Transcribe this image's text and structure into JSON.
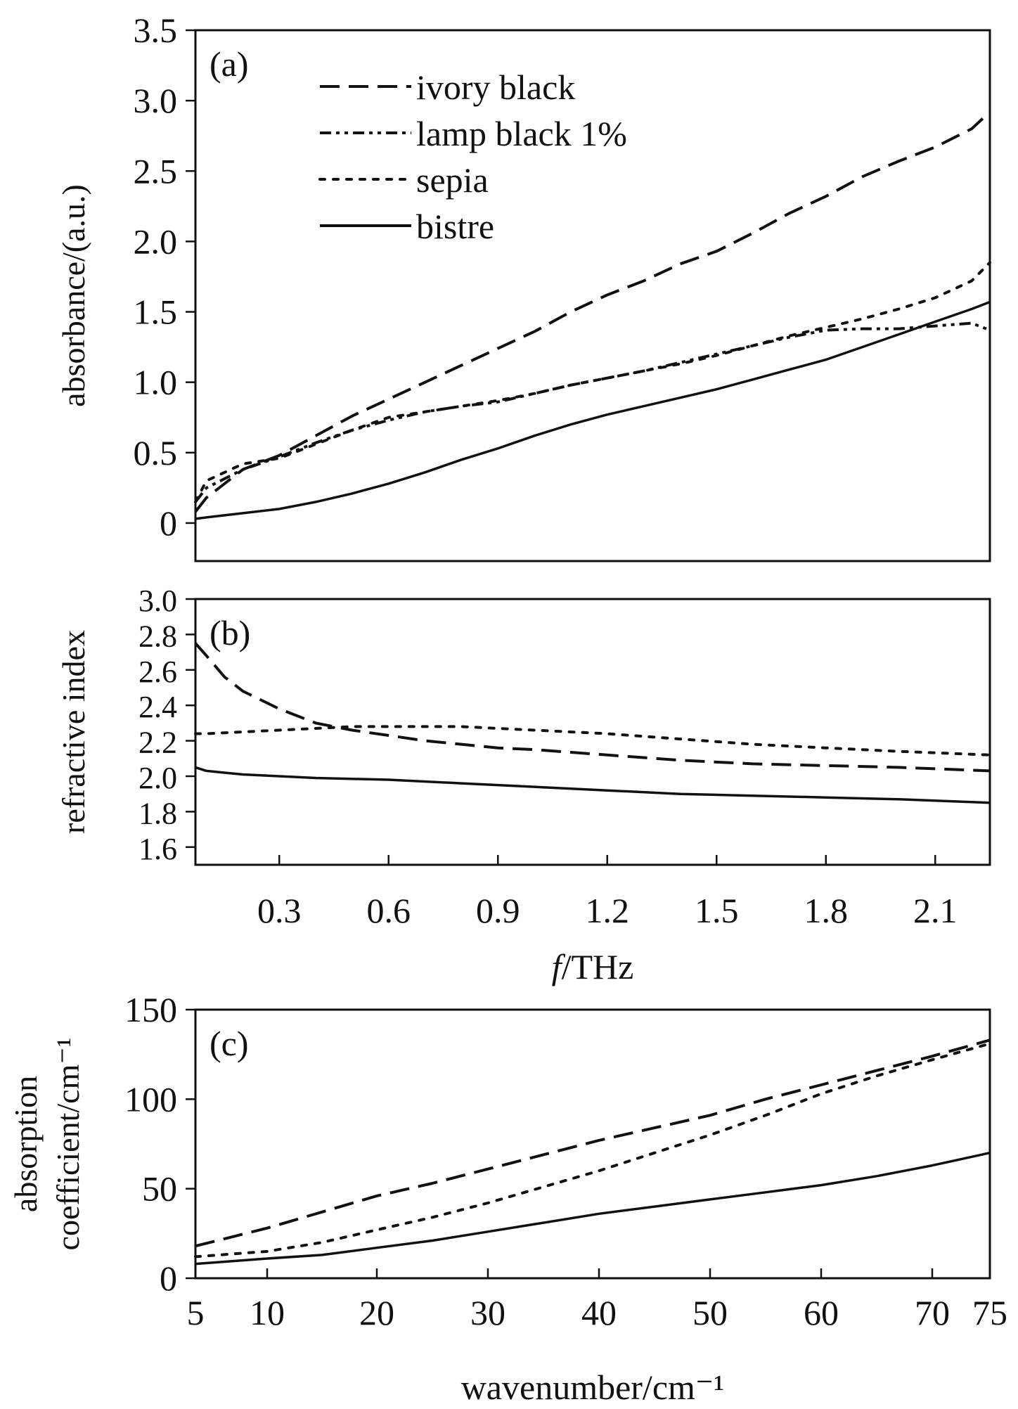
{
  "chart_data": [
    {
      "panel": "(a)",
      "type": "line",
      "xlabel": "",
      "ylabel": "absorbance/(a.u.)",
      "xlim": [
        0.07,
        2.25
      ],
      "ylim": [
        -0.27,
        3.5
      ],
      "x_ticks": [],
      "y_ticks": [
        0,
        0.5,
        1.0,
        1.5,
        2.0,
        2.5,
        3.0,
        3.5
      ],
      "y_tick_labels": [
        "0",
        "0.5",
        "1.0",
        "1.5",
        "2.0",
        "2.5",
        "3.0",
        "3.5"
      ],
      "legend": {
        "position": "top-left",
        "entries": [
          "ivory black",
          "lamp black 1%",
          "sepia",
          "bistre"
        ]
      },
      "series": [
        {
          "name": "ivory black",
          "style": "dashed",
          "x": [
            0.07,
            0.1,
            0.2,
            0.3,
            0.4,
            0.5,
            0.6,
            0.7,
            0.8,
            0.9,
            1.0,
            1.1,
            1.2,
            1.3,
            1.4,
            1.5,
            1.6,
            1.7,
            1.8,
            1.9,
            2.0,
            2.1,
            2.2,
            2.25
          ],
          "y": [
            0.08,
            0.18,
            0.38,
            0.48,
            0.62,
            0.76,
            0.88,
            1.0,
            1.12,
            1.24,
            1.36,
            1.5,
            1.62,
            1.72,
            1.84,
            1.93,
            2.06,
            2.2,
            2.32,
            2.46,
            2.57,
            2.67,
            2.8,
            2.92
          ]
        },
        {
          "name": "lamp black 1%",
          "style": "dash-dot-dot",
          "x": [
            0.07,
            0.1,
            0.2,
            0.3,
            0.4,
            0.5,
            0.6,
            0.7,
            0.8,
            0.9,
            1.0,
            1.1,
            1.2,
            1.3,
            1.4,
            1.5,
            1.6,
            1.7,
            1.8,
            1.9,
            2.0,
            2.1,
            2.2,
            2.25
          ],
          "y": [
            0.15,
            0.25,
            0.38,
            0.47,
            0.57,
            0.66,
            0.73,
            0.79,
            0.83,
            0.86,
            0.92,
            0.98,
            1.03,
            1.08,
            1.14,
            1.2,
            1.26,
            1.32,
            1.37,
            1.38,
            1.38,
            1.4,
            1.42,
            1.37
          ]
        },
        {
          "name": "sepia",
          "style": "dotted",
          "x": [
            0.07,
            0.1,
            0.2,
            0.3,
            0.4,
            0.5,
            0.6,
            0.7,
            0.8,
            0.9,
            1.0,
            1.1,
            1.2,
            1.3,
            1.4,
            1.5,
            1.6,
            1.7,
            1.8,
            1.9,
            2.0,
            2.1,
            2.2,
            2.25
          ],
          "y": [
            0.15,
            0.3,
            0.42,
            0.46,
            0.56,
            0.66,
            0.75,
            0.79,
            0.83,
            0.87,
            0.92,
            0.98,
            1.03,
            1.08,
            1.13,
            1.19,
            1.26,
            1.33,
            1.39,
            1.45,
            1.52,
            1.6,
            1.72,
            1.85
          ]
        },
        {
          "name": "bistre",
          "style": "solid",
          "x": [
            0.07,
            0.1,
            0.2,
            0.3,
            0.4,
            0.5,
            0.6,
            0.7,
            0.8,
            0.9,
            1.0,
            1.1,
            1.2,
            1.3,
            1.4,
            1.5,
            1.6,
            1.7,
            1.8,
            1.9,
            2.0,
            2.1,
            2.2,
            2.25
          ],
          "y": [
            0.03,
            0.04,
            0.07,
            0.1,
            0.15,
            0.21,
            0.28,
            0.36,
            0.45,
            0.53,
            0.62,
            0.7,
            0.77,
            0.83,
            0.89,
            0.95,
            1.02,
            1.09,
            1.16,
            1.25,
            1.34,
            1.43,
            1.52,
            1.57
          ]
        }
      ]
    },
    {
      "panel": "(b)",
      "type": "line",
      "xlabel": "f/THz",
      "ylabel": "refractive index",
      "xlim": [
        0.07,
        2.25
      ],
      "ylim": [
        1.5,
        3.0
      ],
      "x_ticks": [
        0.3,
        0.6,
        0.9,
        1.2,
        1.5,
        1.8,
        2.1
      ],
      "x_tick_labels": [
        "0.3",
        "0.6",
        "0.9",
        "1.2",
        "1.5",
        "1.8",
        "2.1"
      ],
      "y_ticks": [
        1.6,
        1.8,
        2.0,
        2.2,
        2.4,
        2.6,
        2.8,
        3.0
      ],
      "y_tick_labels": [
        "1.6",
        "1.8",
        "2.0",
        "2.2",
        "2.4",
        "2.6",
        "2.8",
        "3.0"
      ],
      "series": [
        {
          "name": "ivory black",
          "style": "dashed",
          "x": [
            0.07,
            0.1,
            0.15,
            0.2,
            0.3,
            0.4,
            0.5,
            0.6,
            0.7,
            0.8,
            0.9,
            1.0,
            1.2,
            1.4,
            1.6,
            1.8,
            2.0,
            2.25
          ],
          "y": [
            2.75,
            2.68,
            2.56,
            2.48,
            2.38,
            2.3,
            2.26,
            2.23,
            2.2,
            2.18,
            2.16,
            2.15,
            2.12,
            2.09,
            2.07,
            2.06,
            2.05,
            2.03
          ]
        },
        {
          "name": "sepia",
          "style": "dotted",
          "x": [
            0.07,
            0.1,
            0.2,
            0.3,
            0.4,
            0.5,
            0.6,
            0.7,
            0.8,
            0.9,
            1.0,
            1.2,
            1.4,
            1.6,
            1.8,
            2.0,
            2.25
          ],
          "y": [
            2.24,
            2.24,
            2.25,
            2.26,
            2.27,
            2.28,
            2.28,
            2.28,
            2.28,
            2.27,
            2.26,
            2.24,
            2.21,
            2.18,
            2.16,
            2.14,
            2.12
          ]
        },
        {
          "name": "bistre",
          "style": "solid",
          "x": [
            0.07,
            0.1,
            0.15,
            0.2,
            0.3,
            0.4,
            0.6,
            0.8,
            1.0,
            1.2,
            1.4,
            1.6,
            1.8,
            2.0,
            2.25
          ],
          "y": [
            2.05,
            2.03,
            2.02,
            2.01,
            2.0,
            1.99,
            1.98,
            1.96,
            1.94,
            1.92,
            1.9,
            1.89,
            1.88,
            1.87,
            1.85
          ]
        }
      ]
    },
    {
      "panel": "(c)",
      "type": "line",
      "xlabel": "wavenumber/cm⁻¹",
      "ylabel": [
        "absorption",
        "coefficient/cm⁻¹"
      ],
      "xlim": [
        5,
        75
      ],
      "ylim": [
        0,
        150
      ],
      "x_ticks": [
        5,
        10,
        20,
        30,
        40,
        50,
        60,
        70,
        75
      ],
      "x_tick_labels": [
        "5",
        "10",
        "20",
        "30",
        "40",
        "50",
        "60",
        "70",
        "75"
      ],
      "y_ticks": [
        0,
        50,
        100,
        150
      ],
      "y_tick_labels": [
        "0",
        "50",
        "100",
        "150"
      ],
      "series": [
        {
          "name": "ivory black",
          "style": "dashed",
          "x": [
            5,
            10,
            15,
            20,
            25,
            30,
            35,
            40,
            45,
            50,
            55,
            60,
            65,
            70,
            75
          ],
          "y": [
            18,
            28,
            37,
            46,
            53,
            61,
            69,
            77,
            84,
            91,
            100,
            108,
            116,
            124,
            133
          ]
        },
        {
          "name": "sepia",
          "style": "dotted",
          "x": [
            5,
            10,
            15,
            20,
            25,
            30,
            35,
            40,
            45,
            50,
            55,
            60,
            65,
            70,
            75
          ],
          "y": [
            12,
            15,
            20,
            27,
            34,
            42,
            51,
            60,
            70,
            80,
            91,
            103,
            113,
            122,
            131
          ]
        },
        {
          "name": "bistre",
          "style": "solid",
          "x": [
            5,
            10,
            15,
            20,
            25,
            30,
            35,
            40,
            45,
            50,
            55,
            60,
            65,
            70,
            75
          ],
          "y": [
            8,
            11,
            13,
            17,
            21,
            26,
            31,
            36,
            40,
            44,
            48,
            52,
            57,
            63,
            70
          ]
        }
      ]
    }
  ]
}
